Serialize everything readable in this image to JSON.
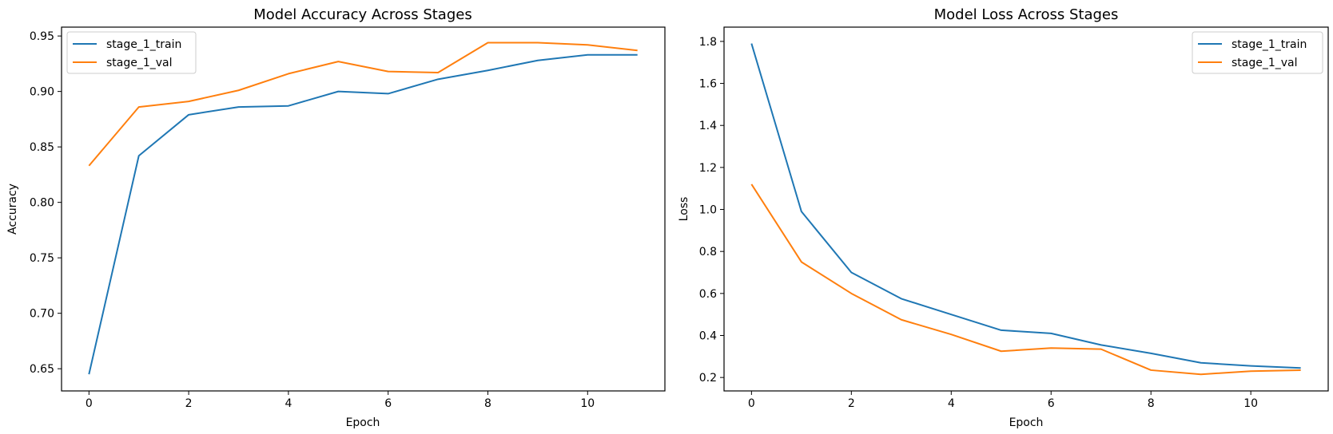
{
  "chart_data": [
    {
      "type": "line",
      "title": "Model Accuracy Across Stages",
      "xlabel": "Epoch",
      "ylabel": "Accuracy",
      "x": [
        0,
        1,
        2,
        3,
        4,
        5,
        6,
        7,
        8,
        9,
        10,
        11
      ],
      "xlim": [
        -0.55,
        11.55
      ],
      "ylim": [
        0.63,
        0.958
      ],
      "xticks": [
        "0",
        "2",
        "4",
        "6",
        "8",
        "10"
      ],
      "yticks": [
        "0.65",
        "0.70",
        "0.75",
        "0.80",
        "0.85",
        "0.90",
        "0.95"
      ],
      "grid": false,
      "legend_position": "upper-left",
      "series": [
        {
          "name": "stage_1_train",
          "color": "#1f77b4",
          "values": [
            0.645,
            0.842,
            0.879,
            0.886,
            0.887,
            0.9,
            0.898,
            0.911,
            0.919,
            0.928,
            0.933,
            0.933
          ]
        },
        {
          "name": "stage_1_val",
          "color": "#ff7f0e",
          "values": [
            0.833,
            0.886,
            0.891,
            0.901,
            0.916,
            0.927,
            0.918,
            0.917,
            0.944,
            0.944,
            0.942,
            0.937
          ]
        }
      ]
    },
    {
      "type": "line",
      "title": "Model Loss Across Stages",
      "xlabel": "Epoch",
      "ylabel": "Loss",
      "x": [
        0,
        1,
        2,
        3,
        4,
        5,
        6,
        7,
        8,
        9,
        10,
        11
      ],
      "xlim": [
        -0.55,
        11.55
      ],
      "ylim": [
        0.136,
        1.868
      ],
      "xticks": [
        "0",
        "2",
        "4",
        "6",
        "8",
        "10"
      ],
      "yticks": [
        "0.2",
        "0.4",
        "0.6",
        "0.8",
        "1.0",
        "1.2",
        "1.4",
        "1.6",
        "1.8"
      ],
      "grid": false,
      "legend_position": "upper-right",
      "series": [
        {
          "name": "stage_1_train",
          "color": "#1f77b4",
          "values": [
            1.79,
            0.99,
            0.7,
            0.575,
            0.5,
            0.425,
            0.41,
            0.355,
            0.315,
            0.27,
            0.255,
            0.245
          ]
        },
        {
          "name": "stage_1_val",
          "color": "#ff7f0e",
          "values": [
            1.12,
            0.75,
            0.6,
            0.475,
            0.405,
            0.325,
            0.34,
            0.335,
            0.235,
            0.215,
            0.23,
            0.235
          ]
        }
      ]
    }
  ]
}
